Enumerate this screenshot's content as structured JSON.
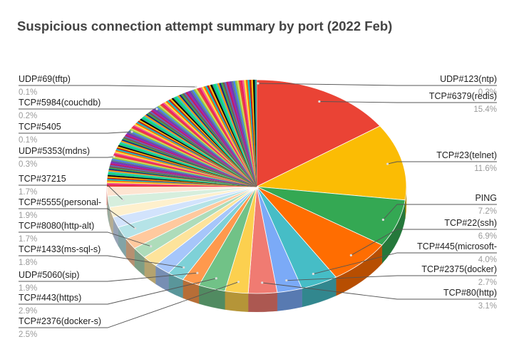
{
  "chart_data": {
    "type": "pie",
    "title": "Suspicious connection attempt summary by port  (2022 Feb)",
    "slices": [
      {
        "label": "TCP#6379(redis)",
        "pct": "15.4%",
        "value": 15.4,
        "color": "#ea4335",
        "shade": "#a82f25"
      },
      {
        "label": "TCP#23(telnet)",
        "pct": "11.6%",
        "value": 11.6,
        "color": "#fbbc04",
        "shade": "#b48703"
      },
      {
        "label": "PING",
        "pct": "7.2%",
        "value": 7.2,
        "color": "#34a853",
        "shade": "#25783b"
      },
      {
        "label": "TCP#22(ssh)",
        "pct": "6.9%",
        "value": 6.9,
        "color": "#ff6d01",
        "shade": "#b74e01"
      },
      {
        "label": "TCP#445(microsoft-",
        "pct": "4.0%",
        "value": 4.0,
        "color": "#46bdc6",
        "shade": "#32878e"
      },
      {
        "label": "TCP#2375(docker)",
        "pct": "2.7%",
        "value": 2.7,
        "color": "#7baaf7",
        "shade": "#587ab1"
      },
      {
        "label": "TCP#80(http)",
        "pct": "3.1%",
        "value": 3.1,
        "color": "#f07b72",
        "shade": "#ac5851"
      },
      {
        "label": "TCP#2376(docker-s)",
        "pct": "2.5%",
        "value": 2.5,
        "color": "#fcd04f",
        "shade": "#b59538"
      },
      {
        "label": "TCP#443(https)",
        "pct": "2.9%",
        "value": 2.9,
        "color": "#71c287",
        "shade": "#518b61"
      },
      {
        "label": "UDP#5060(sip)",
        "pct": "1.9%",
        "value": 1.9,
        "color": "#ff994d",
        "shade": "#b76e37"
      },
      {
        "label": "TCP#1433(ms-sql-s)",
        "pct": "1.8%",
        "value": 1.8,
        "color": "#7ed1d7",
        "shade": "#5a969a"
      },
      {
        "label": "",
        "pct": "",
        "value": 1.8,
        "color": "#a6c6fa",
        "shade": "#778eb3"
      },
      {
        "label": "",
        "pct": "",
        "value": 1.7,
        "color": "#fde39b",
        "shade": "#b5a36f"
      },
      {
        "label": "TCP#8080(http-alt)",
        "pct": "1.7%",
        "value": 1.7,
        "color": "#aedcba",
        "shade": "#7d9e85"
      },
      {
        "label": "",
        "pct": "",
        "value": 1.7,
        "color": "#ffc99e",
        "shade": "#b79071"
      },
      {
        "label": "TCP#5555(personal-",
        "pct": "1.9%",
        "value": 1.9,
        "color": "#b5e3e7",
        "shade": "#82a3a6"
      },
      {
        "label": "",
        "pct": "",
        "value": 1.6,
        "color": "#d2e3fc",
        "shade": "#97a3b5"
      },
      {
        "label": "",
        "pct": "",
        "value": 1.5,
        "color": "#fef0cd",
        "shade": "#b6ad93"
      },
      {
        "label": "TCP#37215",
        "pct": "1.7%",
        "value": 1.7,
        "color": "#d6eedd",
        "shade": "#9aab9f"
      },
      {
        "label": "",
        "pct": "",
        "value": 1.4,
        "color": "#fde4d1",
        "shade": "#b6a496"
      }
    ],
    "small_slices_label_pairs": [
      {
        "label": "UDP#5353(mdns)",
        "pct": "0.3%"
      },
      {
        "label": "TCP#5405",
        "pct": "0.1%"
      },
      {
        "label": "TCP#5984(couchdb)",
        "pct": "0.2%"
      },
      {
        "label": "UDP#69(tftp)",
        "pct": "0.1%"
      },
      {
        "label": "UDP#123(ntp)",
        "pct": "0.3%"
      }
    ],
    "small_slices_palette": [
      "#ea4335",
      "#fbbc04",
      "#34a853",
      "#4285f4",
      "#ff6d01",
      "#46bdc6",
      "#9c27b0",
      "#e91e63",
      "#000000",
      "#795548",
      "#8bc34a",
      "#00bcd4",
      "#ff9800",
      "#673ab7",
      "#f06292",
      "#26a69a",
      "#5c6bc0",
      "#d4e157",
      "#b71c1c",
      "#1a237e",
      "#607d8b",
      "#ffeb3b",
      "#00e676",
      "#c2185b"
    ],
    "small_slices_count": 130,
    "start_angle_deg": -90,
    "legend": "labels-outside"
  }
}
